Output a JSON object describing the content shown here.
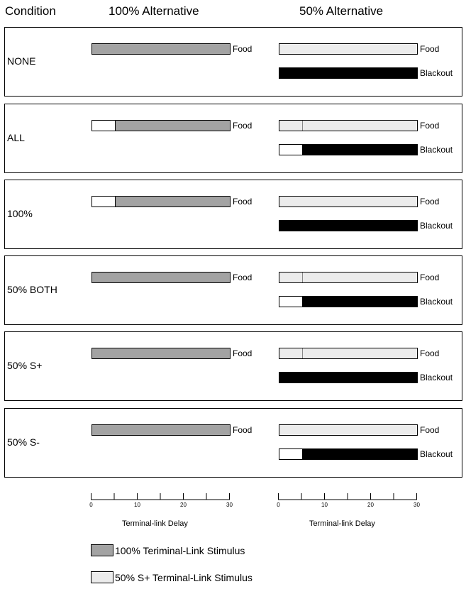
{
  "headers": {
    "condition": "Condition",
    "alt100": "100% Alternative",
    "alt50": "50% Alternative"
  },
  "colors": {
    "white": "#ffffff",
    "dark_gray": "#a3a3a3",
    "light_gray": "#ececec",
    "black": "#000000"
  },
  "axis_max": 30,
  "conditions": [
    {
      "label": "NONE",
      "alt100": {
        "label": "Food",
        "segments": [
          {
            "fill": "dark-gray",
            "start": 0,
            "end": 30
          }
        ]
      },
      "alt50": [
        {
          "label": "Food",
          "segments": [
            {
              "fill": "light-gray",
              "start": 0,
              "end": 30
            }
          ]
        },
        {
          "label": "Blackout",
          "segments": [
            {
              "fill": "black",
              "start": 0,
              "end": 30
            }
          ]
        }
      ]
    },
    {
      "label": "ALL",
      "alt100": {
        "label": "Food",
        "segments": [
          {
            "fill": "white",
            "start": 0,
            "end": 5
          },
          {
            "fill": "dark-gray",
            "start": 5,
            "end": 30
          }
        ]
      },
      "alt50": [
        {
          "label": "Food",
          "segments": [
            {
              "fill": "light-gray",
              "start": 0,
              "end": 5
            },
            {
              "fill": "light-gray",
              "start": 5,
              "end": 30
            }
          ]
        },
        {
          "label": "Blackout",
          "segments": [
            {
              "fill": "white",
              "start": 0,
              "end": 5
            },
            {
              "fill": "black",
              "start": 5,
              "end": 30
            }
          ]
        }
      ]
    },
    {
      "label": "100%",
      "alt100": {
        "label": "Food",
        "segments": [
          {
            "fill": "white",
            "start": 0,
            "end": 5
          },
          {
            "fill": "dark-gray",
            "start": 5,
            "end": 30
          }
        ]
      },
      "alt50": [
        {
          "label": "Food",
          "segments": [
            {
              "fill": "light-gray",
              "start": 0,
              "end": 30
            }
          ]
        },
        {
          "label": "Blackout",
          "segments": [
            {
              "fill": "black",
              "start": 0,
              "end": 30
            }
          ]
        }
      ]
    },
    {
      "label": "50% BOTH",
      "alt100": {
        "label": "Food",
        "segments": [
          {
            "fill": "dark-gray",
            "start": 0,
            "end": 30
          }
        ]
      },
      "alt50": [
        {
          "label": "Food",
          "segments": [
            {
              "fill": "light-gray",
              "start": 0,
              "end": 5
            },
            {
              "fill": "light-gray",
              "start": 5,
              "end": 30
            }
          ]
        },
        {
          "label": "Blackout",
          "segments": [
            {
              "fill": "white",
              "start": 0,
              "end": 5
            },
            {
              "fill": "black",
              "start": 5,
              "end": 30
            }
          ]
        }
      ]
    },
    {
      "label": "50% S+",
      "alt100": {
        "label": "Food",
        "segments": [
          {
            "fill": "dark-gray",
            "start": 0,
            "end": 30
          }
        ]
      },
      "alt50": [
        {
          "label": "Food",
          "segments": [
            {
              "fill": "light-gray",
              "start": 0,
              "end": 5
            },
            {
              "fill": "light-gray",
              "start": 5,
              "end": 30
            }
          ]
        },
        {
          "label": "Blackout",
          "segments": [
            {
              "fill": "black",
              "start": 0,
              "end": 30
            }
          ]
        }
      ]
    },
    {
      "label": "50% S-",
      "alt100": {
        "label": "Food",
        "segments": [
          {
            "fill": "dark-gray",
            "start": 0,
            "end": 30
          }
        ]
      },
      "alt50": [
        {
          "label": "Food",
          "segments": [
            {
              "fill": "light-gray",
              "start": 0,
              "end": 30
            }
          ]
        },
        {
          "label": "Blackout",
          "segments": [
            {
              "fill": "white",
              "start": 0,
              "end": 5
            },
            {
              "fill": "black",
              "start": 5,
              "end": 30
            }
          ]
        }
      ]
    }
  ],
  "axes": {
    "ticks": [
      0,
      10,
      20,
      30
    ],
    "minor_ticks": [
      0,
      5,
      10,
      15,
      20,
      25,
      30
    ],
    "title_left": "Terminal-link Delay",
    "title_right": "Terminal-link Delay"
  },
  "legend": [
    {
      "fill": "dark-gray",
      "label": "100% Teriminal-Link Stimulus"
    },
    {
      "fill": "light-gray",
      "label": "50% S+ Terminal-Link Stimulus"
    }
  ]
}
